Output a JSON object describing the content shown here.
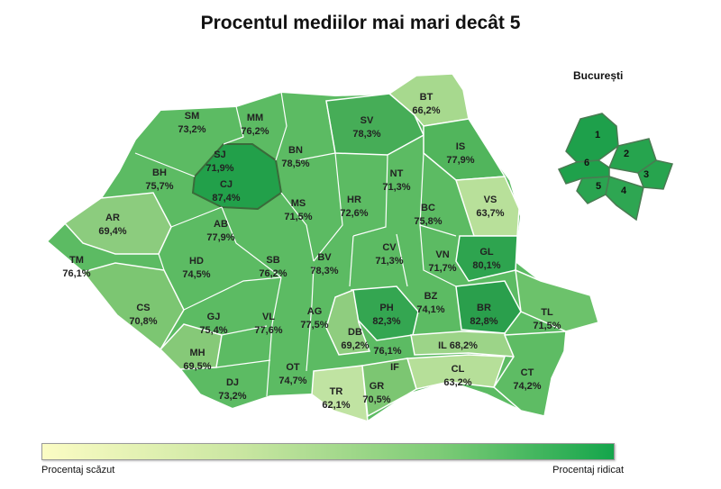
{
  "title": "Procentul mediilor mai mari decât 5",
  "inset_title": "București",
  "legend": {
    "low_label": "Procentaj scăzut",
    "high_label": "Procentaj ridicat",
    "low_color": "#fbfcc4",
    "high_color": "#14a54b"
  },
  "counties": [
    {
      "code": "SM",
      "value": "73,2%"
    },
    {
      "code": "MM",
      "value": "76,2%"
    },
    {
      "code": "BT",
      "value": "66,2%"
    },
    {
      "code": "SV",
      "value": "78,3%"
    },
    {
      "code": "SJ",
      "value": "71,9%"
    },
    {
      "code": "BN",
      "value": "78,5%"
    },
    {
      "code": "IS",
      "value": "77,9%"
    },
    {
      "code": "BH",
      "value": "75,7%"
    },
    {
      "code": "CJ",
      "value": "87,4%"
    },
    {
      "code": "NT",
      "value": "71,3%"
    },
    {
      "code": "VS",
      "value": "63,7%"
    },
    {
      "code": "AR",
      "value": "69,4%"
    },
    {
      "code": "MS",
      "value": "71,5%"
    },
    {
      "code": "HR",
      "value": "72,6%"
    },
    {
      "code": "BC",
      "value": "75,8%"
    },
    {
      "code": "AB",
      "value": "77,9%"
    },
    {
      "code": "CV",
      "value": "71,3%"
    },
    {
      "code": "GL",
      "value": "80,1%"
    },
    {
      "code": "TM",
      "value": "76,1%"
    },
    {
      "code": "HD",
      "value": "74,5%"
    },
    {
      "code": "SB",
      "value": "76,2%"
    },
    {
      "code": "BV",
      "value": "78,3%"
    },
    {
      "code": "VN",
      "value": "71,7%"
    },
    {
      "code": "CS",
      "value": "70,8%"
    },
    {
      "code": "PH",
      "value": "82,3%"
    },
    {
      "code": "BZ",
      "value": "74,1%"
    },
    {
      "code": "BR",
      "value": "82,8%"
    },
    {
      "code": "TL",
      "value": "71,5%"
    },
    {
      "code": "GJ",
      "value": "75,4%"
    },
    {
      "code": "VL",
      "value": "77,6%"
    },
    {
      "code": "AG",
      "value": "77,5%"
    },
    {
      "code": "DB",
      "value": "69,2%"
    },
    {
      "code": "MH",
      "value": "69,5%"
    },
    {
      "code": "IL",
      "value": "68,2%"
    },
    {
      "code": "DJ",
      "value": "73,2%"
    },
    {
      "code": "OT",
      "value": "74,7%"
    },
    {
      "code": "IF",
      "value": "76,1%"
    },
    {
      "code": "CL",
      "value": "63,2%"
    },
    {
      "code": "CT",
      "value": "74,2%"
    },
    {
      "code": "TR",
      "value": "62,1%"
    },
    {
      "code": "GR",
      "value": "70,5%"
    }
  ],
  "sectors": [
    "1",
    "2",
    "3",
    "4",
    "5",
    "6"
  ]
}
